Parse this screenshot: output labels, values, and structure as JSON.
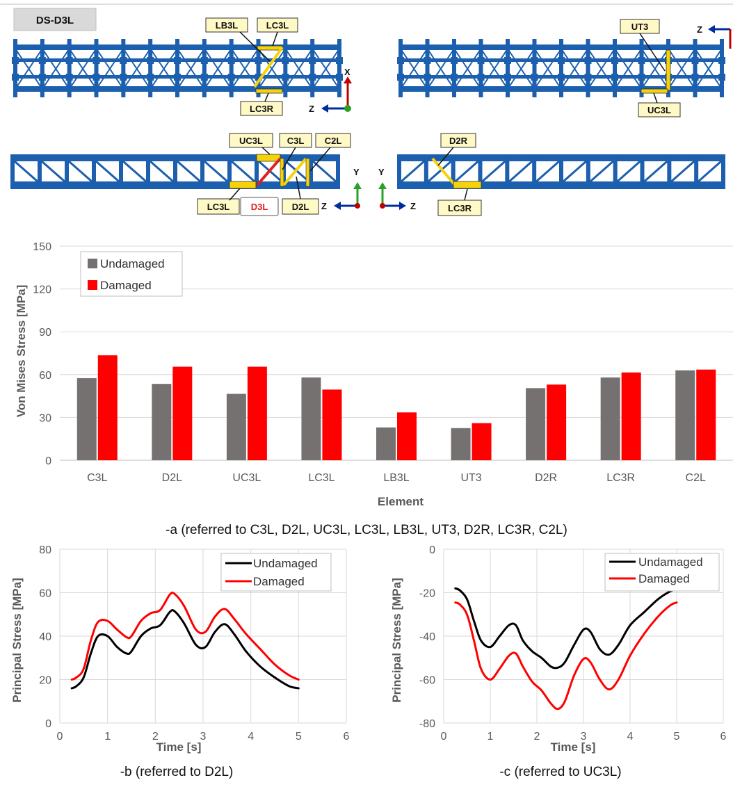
{
  "diagram": {
    "title": "DS-D3L",
    "labels": {
      "lb3l": "LB3L",
      "lc3l_top": "LC3L",
      "lc3r_top": "LC3R",
      "ut3": "UT3",
      "uc3l_top": "UC3L",
      "uc3l": "UC3L",
      "c3l": "C3L",
      "c2l": "C2L",
      "lc3l": "LC3L",
      "d3l": "D3L",
      "d2l": "D2L",
      "d2r": "D2R",
      "lc3r": "LC3R"
    },
    "axes": {
      "x": "X",
      "y": "Y",
      "z": "Z"
    },
    "colors": {
      "truss": "#1b5fae",
      "highlight": "#f5d20a",
      "damaged_member": "#e02020"
    }
  },
  "chart_data": [
    {
      "type": "bar",
      "categories": [
        "C3L",
        "D2L",
        "UC3L",
        "LC3L",
        "LB3L",
        "UT3",
        "D2R",
        "LC3R",
        "C2L"
      ],
      "series": [
        {
          "name": "Undamaged",
          "color": "#767171",
          "values": [
            57.5,
            53.5,
            46.5,
            58.0,
            23.0,
            22.5,
            50.5,
            58.0,
            63.0
          ]
        },
        {
          "name": "Damaged",
          "color": "#ff0000",
          "values": [
            73.5,
            65.5,
            65.5,
            49.5,
            33.5,
            26.0,
            53.0,
            61.5,
            63.5
          ]
        }
      ],
      "xlabel": "Element",
      "ylabel": "Von Mises Stress [MPa]",
      "ylim": [
        0,
        150
      ],
      "yticks": [
        0,
        30,
        60,
        90,
        120,
        150
      ],
      "grid": true,
      "legend": "top-left",
      "caption": "-a (referred to C3L, D2L, UC3L, LC3L, LB3L, UT3, D2R, LC3R, C2L)"
    },
    {
      "type": "line",
      "series": [
        {
          "name": "Undamaged",
          "color": "#000000",
          "x": [
            0.25,
            0.35,
            0.5,
            0.65,
            0.8,
            1.0,
            1.2,
            1.4,
            1.5,
            1.7,
            1.9,
            2.1,
            2.3,
            2.4,
            2.6,
            2.85,
            3.05,
            3.25,
            3.45,
            3.65,
            3.9,
            4.2,
            4.5,
            4.8,
            5.0
          ],
          "y": [
            16,
            17,
            21,
            32,
            40,
            40,
            35,
            32,
            33,
            40,
            43.5,
            45,
            51,
            51.5,
            46,
            36,
            35,
            42,
            45.5,
            41,
            33,
            26,
            21,
            17,
            16
          ]
        },
        {
          "name": "Damaged",
          "color": "#ff0000",
          "x": [
            0.25,
            0.35,
            0.5,
            0.65,
            0.8,
            1.0,
            1.2,
            1.4,
            1.5,
            1.7,
            1.9,
            2.1,
            2.3,
            2.4,
            2.6,
            2.85,
            3.05,
            3.25,
            3.45,
            3.65,
            3.9,
            4.2,
            4.5,
            4.8,
            5.0
          ],
          "y": [
            20,
            21,
            25,
            38,
            46.5,
            47,
            43,
            39.5,
            40,
            47,
            50.5,
            52,
            59,
            59.5,
            54,
            43,
            42,
            49,
            52.5,
            48,
            41,
            34,
            27,
            22,
            20
          ]
        }
      ],
      "xlabel": "Time [s]",
      "ylabel": "Principal Stress [MPa]",
      "xlim": [
        0,
        6
      ],
      "ylim": [
        0,
        80
      ],
      "xticks": [
        0,
        1,
        2,
        3,
        4,
        5,
        6
      ],
      "yticks": [
        0,
        20,
        40,
        60,
        80
      ],
      "grid": true,
      "legend": "top-right",
      "caption": "-b (referred to D2L)"
    },
    {
      "type": "line",
      "series": [
        {
          "name": "Undamaged",
          "color": "#000000",
          "x": [
            0.25,
            0.35,
            0.5,
            0.65,
            0.8,
            1.0,
            1.2,
            1.4,
            1.55,
            1.7,
            1.9,
            2.1,
            2.3,
            2.45,
            2.6,
            2.8,
            3.0,
            3.15,
            3.35,
            3.55,
            3.75,
            4.0,
            4.3,
            4.6,
            4.85,
            5.0
          ],
          "y": [
            -18,
            -19,
            -23,
            -33,
            -42,
            -45,
            -40,
            -35,
            -35,
            -42,
            -47,
            -50,
            -54,
            -54.5,
            -52,
            -44,
            -37,
            -38,
            -46,
            -48.5,
            -44,
            -35,
            -29,
            -23,
            -19.5,
            -18.5
          ]
        },
        {
          "name": "Damaged",
          "color": "#ff0000",
          "x": [
            0.25,
            0.35,
            0.5,
            0.65,
            0.8,
            1.0,
            1.2,
            1.4,
            1.55,
            1.7,
            1.9,
            2.1,
            2.3,
            2.45,
            2.6,
            2.8,
            3.0,
            3.15,
            3.35,
            3.55,
            3.75,
            4.0,
            4.3,
            4.6,
            4.85,
            5.0
          ],
          "y": [
            -24.5,
            -25.5,
            -30,
            -42,
            -55,
            -60,
            -55,
            -49,
            -48,
            -54,
            -61,
            -65,
            -71,
            -73.5,
            -70,
            -58,
            -50.5,
            -52,
            -60,
            -64.5,
            -60,
            -49,
            -39,
            -31,
            -26,
            -24.5
          ]
        }
      ],
      "xlabel": "Time [s]",
      "ylabel": "Principal Stress [MPa]",
      "xlim": [
        0,
        6
      ],
      "ylim": [
        -80,
        0
      ],
      "xticks": [
        0,
        1,
        2,
        3,
        4,
        5,
        6
      ],
      "yticks": [
        -80,
        -60,
        -40,
        -20,
        0
      ],
      "grid": true,
      "legend": "top-right",
      "caption": "-c (referred to UC3L)"
    }
  ]
}
